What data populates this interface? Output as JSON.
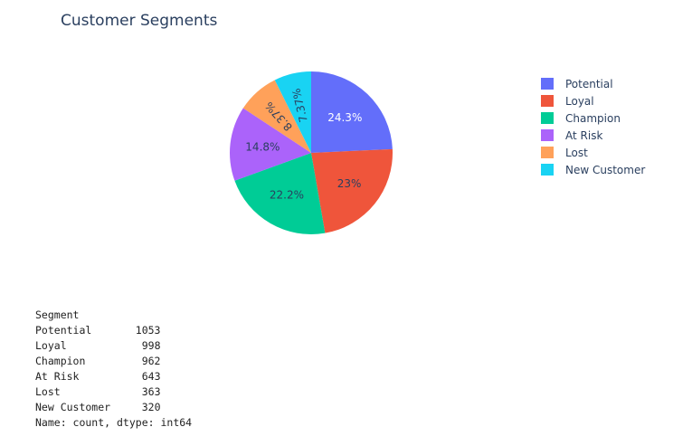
{
  "chart_data": {
    "type": "pie",
    "title": "Customer Segments",
    "categories": [
      "Potential",
      "Loyal",
      "Champion",
      "At Risk",
      "Lost",
      "New Customer"
    ],
    "values": [
      1053,
      998,
      962,
      643,
      363,
      320
    ],
    "percent_labels": [
      "24.3%",
      "23%",
      "22.2%",
      "14.8%",
      "8.37%",
      "7.37%"
    ],
    "colors": [
      "#636efa",
      "#ef553b",
      "#00cc96",
      "#ab63fa",
      "#ffa15a",
      "#19d3f3"
    ],
    "legend_placement": "top-right"
  },
  "console": {
    "header": "Segment",
    "rows": [
      {
        "name": "Potential",
        "count": "1053"
      },
      {
        "name": "Loyal",
        "count": "998"
      },
      {
        "name": "Champion",
        "count": "962"
      },
      {
        "name": "At Risk",
        "count": "643"
      },
      {
        "name": "Lost",
        "count": "363"
      },
      {
        "name": "New Customer",
        "count": "320"
      }
    ],
    "footer": "Name: count, dtype: int64"
  }
}
